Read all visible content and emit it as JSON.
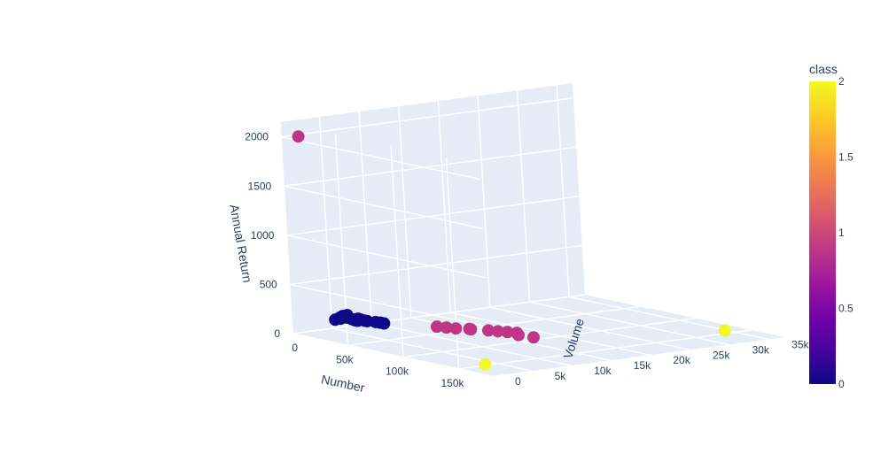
{
  "chart_data": {
    "type": "scatter3d",
    "axes": {
      "x": {
        "title": "Number",
        "ticks": [
          "0",
          "50k",
          "100k",
          "150k"
        ],
        "tick_values": [
          0,
          50000,
          100000,
          150000
        ],
        "range": [
          0,
          180000
        ]
      },
      "y": {
        "title": "Volume",
        "ticks": [
          "0",
          "5k",
          "10k",
          "15k",
          "20k",
          "25k",
          "30k",
          "35k"
        ],
        "tick_values": [
          0,
          5000,
          10000,
          15000,
          20000,
          25000,
          30000,
          35000
        ],
        "range": [
          0,
          37000
        ]
      },
      "z": {
        "title": "Annual Return",
        "ticks": [
          "0",
          "500",
          "1000",
          "1500",
          "2000"
        ],
        "tick_values": [
          0,
          500,
          1000,
          1500,
          2000
        ],
        "range": [
          0,
          2150
        ]
      }
    },
    "colorbar": {
      "title": "class",
      "ticks": [
        "0",
        "0.5",
        "1",
        "1.5",
        "2"
      ],
      "tick_values": [
        0,
        0.5,
        1,
        1.5,
        2
      ],
      "range": [
        0,
        2
      ]
    },
    "grid": true,
    "points": [
      {
        "x": 5000,
        "y": 1500,
        "z": 2000,
        "class": 1
      },
      {
        "x": 155000,
        "y": 33000,
        "z": 50,
        "class": 2
      },
      {
        "x": 160000,
        "y": 2000,
        "z": 50,
        "class": 2
      },
      {
        "x": 7000,
        "y": 4500,
        "z": 110,
        "class": 0
      },
      {
        "x": 8000,
        "y": 5000,
        "z": 130,
        "class": 0
      },
      {
        "x": 9000,
        "y": 5200,
        "z": 145,
        "class": 0
      },
      {
        "x": 10000,
        "y": 4800,
        "z": 125,
        "class": 0
      },
      {
        "x": 11000,
        "y": 5500,
        "z": 155,
        "class": 0
      },
      {
        "x": 12000,
        "y": 5300,
        "z": 135,
        "class": 0
      },
      {
        "x": 13000,
        "y": 5800,
        "z": 115,
        "class": 0
      },
      {
        "x": 14000,
        "y": 6000,
        "z": 105,
        "class": 0
      },
      {
        "x": 15000,
        "y": 6200,
        "z": 100,
        "class": 0
      },
      {
        "x": 16000,
        "y": 6500,
        "z": 110,
        "class": 0
      },
      {
        "x": 17000,
        "y": 6800,
        "z": 100,
        "class": 0
      },
      {
        "x": 18000,
        "y": 7000,
        "z": 95,
        "class": 0
      },
      {
        "x": 20000,
        "y": 5600,
        "z": 140,
        "class": 0
      },
      {
        "x": 22000,
        "y": 7500,
        "z": 90,
        "class": 0
      },
      {
        "x": 24000,
        "y": 7800,
        "z": 85,
        "class": 0
      },
      {
        "x": 26000,
        "y": 8000,
        "z": 80,
        "class": 0
      },
      {
        "x": 45000,
        "y": 12000,
        "z": 50,
        "class": 1
      },
      {
        "x": 50000,
        "y": 12500,
        "z": 48,
        "class": 1
      },
      {
        "x": 55000,
        "y": 13000,
        "z": 45,
        "class": 1
      },
      {
        "x": 60000,
        "y": 14000,
        "z": 42,
        "class": 1
      },
      {
        "x": 65000,
        "y": 13500,
        "z": 55,
        "class": 1
      },
      {
        "x": 70000,
        "y": 15000,
        "z": 40,
        "class": 1
      },
      {
        "x": 75000,
        "y": 15500,
        "z": 38,
        "class": 1
      },
      {
        "x": 80000,
        "y": 16000,
        "z": 36,
        "class": 1
      },
      {
        "x": 85000,
        "y": 16500,
        "z": 35,
        "class": 1
      },
      {
        "x": 90000,
        "y": 16000,
        "z": 30,
        "class": 1
      },
      {
        "x": 100000,
        "y": 16500,
        "z": 25,
        "class": 1
      }
    ]
  }
}
